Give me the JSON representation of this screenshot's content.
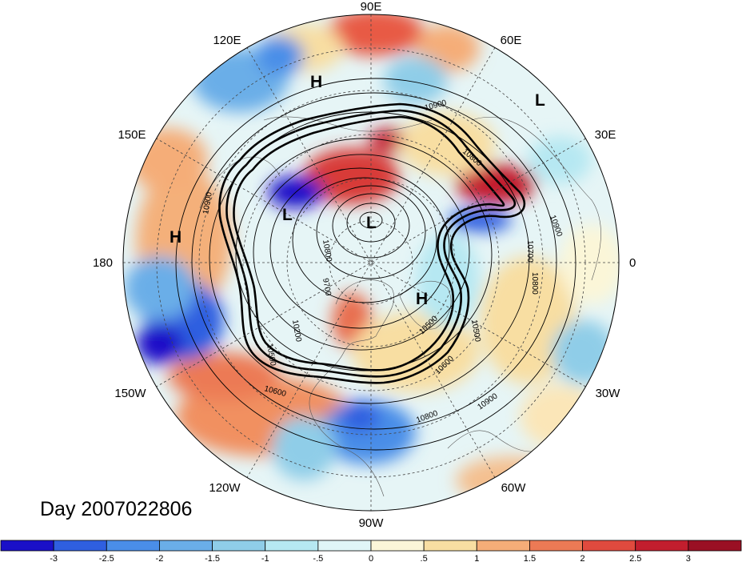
{
  "map": {
    "projection": "north-polar-stereographic",
    "longitude_labels": [
      "90E",
      "60E",
      "30E",
      "0",
      "30W",
      "60W",
      "90W",
      "120W",
      "150W",
      "180",
      "150E",
      "120E"
    ],
    "pressure_centers": [
      {
        "label": "H",
        "region": "east-siberia"
      },
      {
        "label": "L",
        "region": "eurasia-north"
      },
      {
        "label": "L",
        "region": "east-asia"
      },
      {
        "label": "L",
        "region": "pole"
      },
      {
        "label": "H",
        "region": "north-pacific"
      },
      {
        "label": "H",
        "region": "greenland"
      }
    ],
    "contour_labels": [
      "10900",
      "10800",
      "10700",
      "10900",
      "10800",
      "10500",
      "10600",
      "10800",
      "10900",
      "10600",
      "10500",
      "10200",
      "9700",
      "10900",
      "10500",
      "10800"
    ],
    "contour_levels_m": [
      9500,
      9600,
      9700,
      9800,
      9900,
      10000,
      10100,
      10200,
      10300,
      10400,
      10500,
      10600,
      10700,
      10800,
      10900
    ],
    "date_label": "Day 2007022806"
  },
  "colorbar": {
    "tick_labels": [
      "-3",
      "-2.5",
      "-2",
      "-1.5",
      "-1",
      "-.5",
      "0",
      ".5",
      "1",
      "1.5",
      "2",
      "2.5",
      "3"
    ],
    "colors": [
      "#1a10c8",
      "#2f5fe0",
      "#4a8ee8",
      "#6aaee8",
      "#8fcde8",
      "#b6e8f2",
      "#e0f6f7",
      "#fbf6d8",
      "#f8dea2",
      "#f5ad78",
      "#ec7a55",
      "#e04a3e",
      "#c21e2e",
      "#9a1024"
    ]
  }
}
